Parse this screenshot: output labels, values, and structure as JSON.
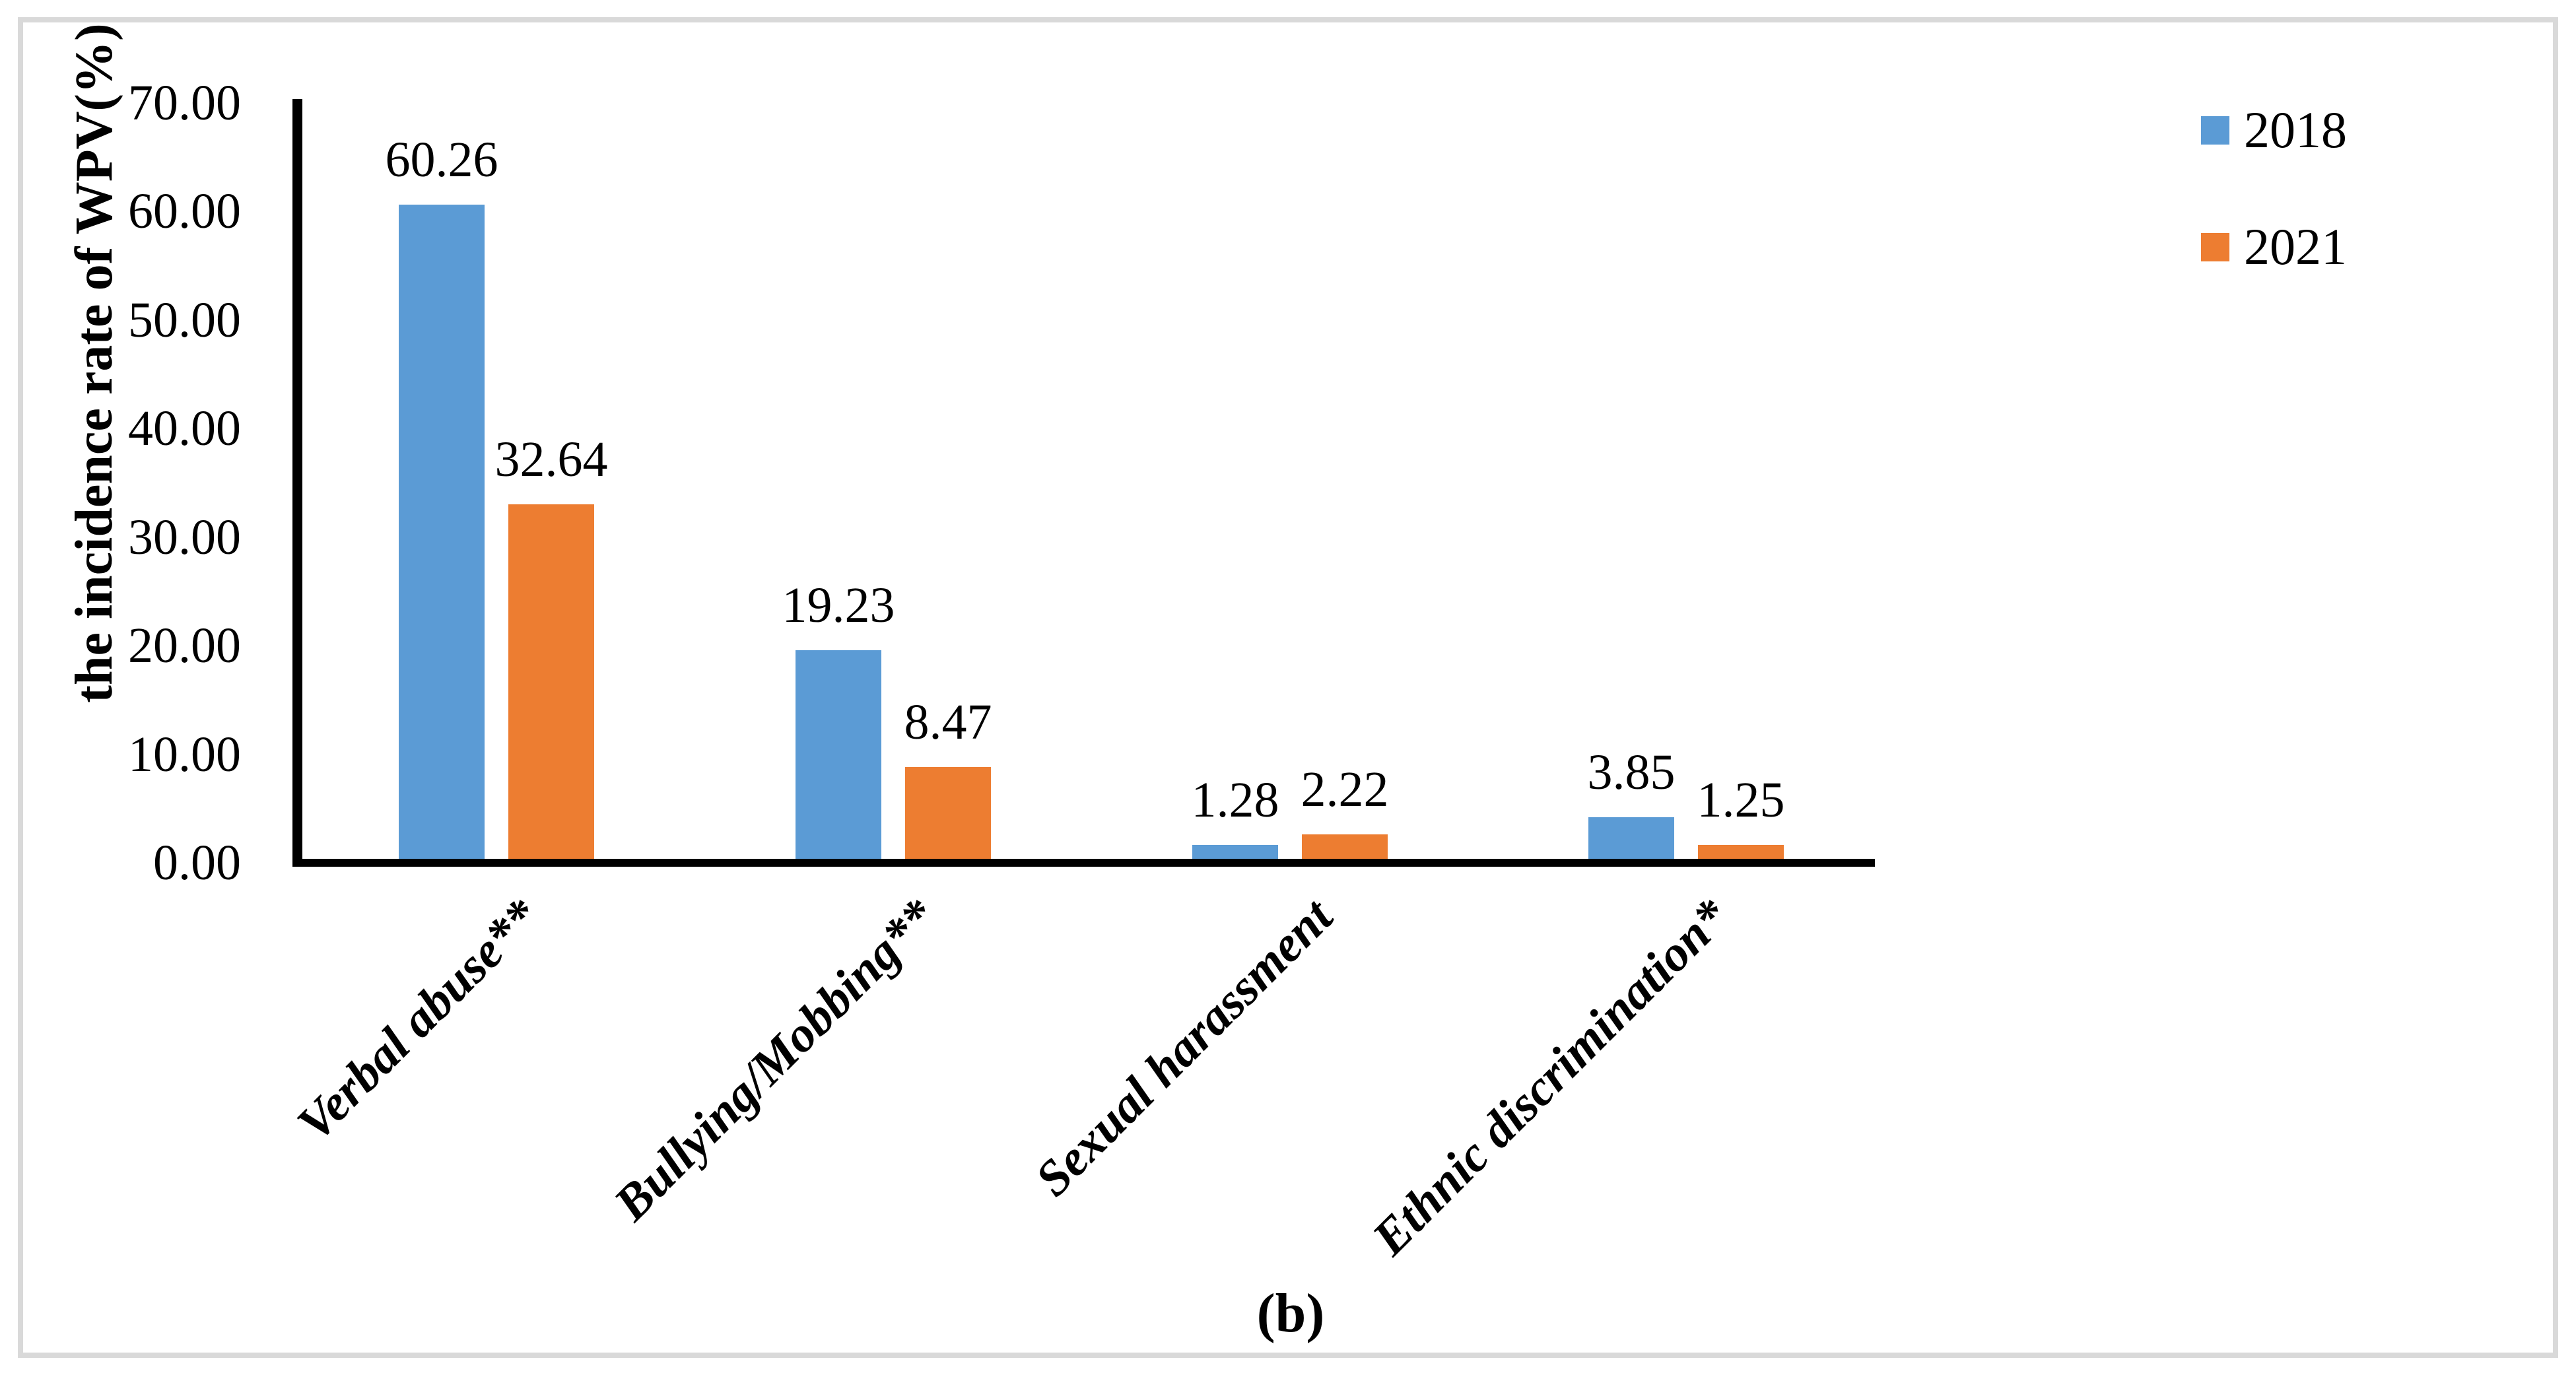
{
  "figure": {
    "caption": "(b)"
  },
  "legend": {
    "position": "top-right",
    "items": [
      {
        "label": "2018",
        "color": "#5B9BD5"
      },
      {
        "label": "2021",
        "color": "#ED7D31"
      }
    ]
  },
  "chart_data": {
    "type": "bar",
    "title": "",
    "xlabel": "",
    "ylabel": "the incidence rate of WPV(%)",
    "categories": [
      "Verbal abuse**",
      "Bullying/Mobbing**",
      "Sexual harassment",
      "Ethnic discrimination*"
    ],
    "series": [
      {
        "name": "2018",
        "color": "#5B9BD5",
        "values": [
          60.26,
          19.23,
          1.28,
          3.85
        ],
        "value_labels": [
          "60.26",
          "19.23",
          "1.28",
          "3.85"
        ]
      },
      {
        "name": "2021",
        "color": "#ED7D31",
        "values": [
          32.64,
          8.47,
          2.22,
          1.25
        ],
        "value_labels": [
          "32.64",
          "8.47",
          "2.22",
          "1.25"
        ]
      }
    ],
    "ylim": [
      0,
      70
    ],
    "ytick_step": 10,
    "ytick_labels": [
      "0.00",
      "10.00",
      "20.00",
      "30.00",
      "40.00",
      "50.00",
      "60.00",
      "70.00"
    ],
    "grid": false,
    "value_labels_shown": true,
    "axis_color": "#000000",
    "frame_color": "#D9D9D9"
  }
}
